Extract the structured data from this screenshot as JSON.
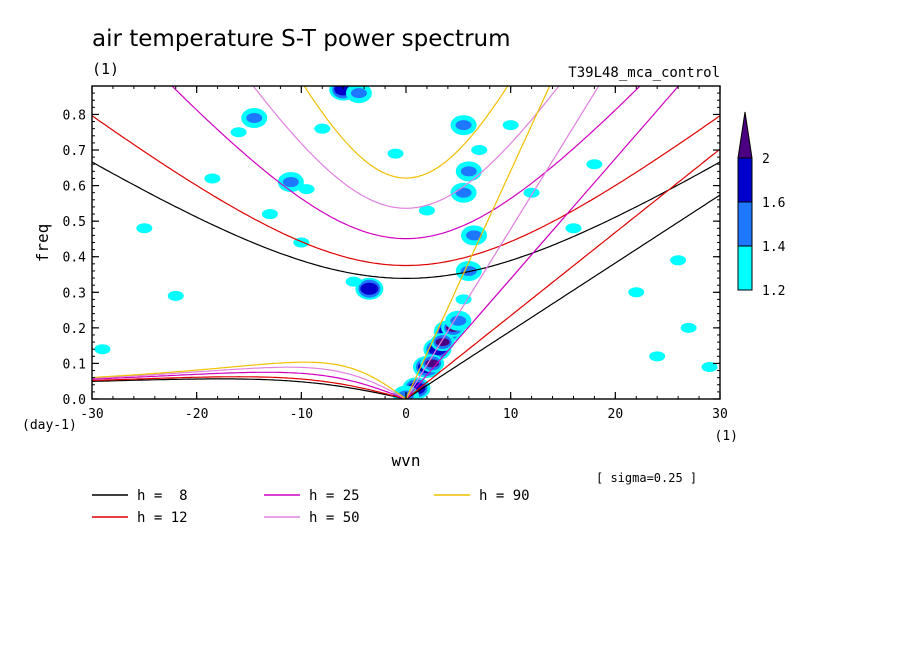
{
  "chart_data": {
    "type": "heatmap",
    "title": "air temperature S-T power spectrum",
    "units_left": "(1)",
    "run_name": "T39L48_mca_control",
    "xlabel": "wvn",
    "ylabel": "freq",
    "x_units": "(1)",
    "y_units": "(day-1)",
    "xlim": [
      -30,
      30
    ],
    "ylim": [
      0,
      0.88
    ],
    "xticks": [
      -30,
      -20,
      -10,
      0,
      10,
      20,
      30
    ],
    "xtick_labels": [
      "-30",
      "-20",
      "-10",
      "0",
      "10",
      "20",
      "30"
    ],
    "yticks": [
      0.0,
      0.1,
      0.2,
      0.3,
      0.4,
      0.5,
      0.6,
      0.7,
      0.8
    ],
    "ytick_labels": [
      "0.0",
      "0.1",
      "0.2",
      "0.3",
      "0.4",
      "0.5",
      "0.6",
      "0.7",
      "0.8"
    ],
    "sigma_note": "[ sigma=0.25 ]",
    "colorbar": {
      "levels": [
        1.2,
        1.4,
        1.6,
        2
      ],
      "labels": [
        "1.2",
        "1.4",
        "1.6",
        "2"
      ],
      "colors": [
        "#00ffff",
        "#1e78ff",
        "#0000cd",
        "#4b0082"
      ]
    },
    "dispersion_curves": [
      {
        "h": 8,
        "label": "h =  8",
        "color": "#000000"
      },
      {
        "h": 12,
        "label": "h = 12",
        "color": "#e00000"
      },
      {
        "h": 25,
        "label": "h = 25",
        "color": "#d000c0"
      },
      {
        "h": 50,
        "label": "h = 50",
        "color": "#e080e0"
      },
      {
        "h": 90,
        "label": "h = 90",
        "color": "#f0c000"
      }
    ],
    "contour_regions": [
      {
        "x": 1,
        "y": 0.03,
        "level": 1.6
      },
      {
        "x": 2,
        "y": 0.09,
        "level": 1.6
      },
      {
        "x": 3,
        "y": 0.14,
        "level": 1.6
      },
      {
        "x": 4,
        "y": 0.19,
        "level": 1.6
      },
      {
        "x": 4.5,
        "y": 0.2,
        "level": 2
      },
      {
        "x": 3.5,
        "y": 0.16,
        "level": 2
      },
      {
        "x": 2.5,
        "y": 0.1,
        "level": 2
      },
      {
        "x": 5,
        "y": 0.22,
        "level": 1.4
      },
      {
        "x": 5.5,
        "y": 0.28,
        "level": 1.2
      },
      {
        "x": 6,
        "y": 0.36,
        "level": 1.4
      },
      {
        "x": 6.5,
        "y": 0.46,
        "level": 1.4
      },
      {
        "x": 5.5,
        "y": 0.58,
        "level": 1.4
      },
      {
        "x": 6,
        "y": 0.64,
        "level": 1.4
      },
      {
        "x": 5.5,
        "y": 0.77,
        "level": 1.4
      },
      {
        "x": 7,
        "y": 0.7,
        "level": 1.2
      },
      {
        "x": -3.5,
        "y": 0.31,
        "level": 1.6
      },
      {
        "x": -5,
        "y": 0.33,
        "level": 1.2
      },
      {
        "x": -6,
        "y": 0.87,
        "level": 1.6
      },
      {
        "x": -4.5,
        "y": 0.86,
        "level": 1.4
      },
      {
        "x": -11,
        "y": 0.61,
        "level": 1.4
      },
      {
        "x": -9.5,
        "y": 0.59,
        "level": 1.2
      },
      {
        "x": -13,
        "y": 0.52,
        "level": 1.2
      },
      {
        "x": -10,
        "y": 0.44,
        "level": 1.2
      },
      {
        "x": -14.5,
        "y": 0.79,
        "level": 1.4
      },
      {
        "x": -16,
        "y": 0.75,
        "level": 1.2
      },
      {
        "x": -18.5,
        "y": 0.62,
        "level": 1.2
      },
      {
        "x": -8,
        "y": 0.76,
        "level": 1.2
      },
      {
        "x": -22,
        "y": 0.29,
        "level": 1.2
      },
      {
        "x": -25,
        "y": 0.48,
        "level": 1.2
      },
      {
        "x": -29,
        "y": 0.14,
        "level": 1.2
      },
      {
        "x": 0,
        "y": 0.01,
        "level": 1.4
      },
      {
        "x": 12,
        "y": 0.58,
        "level": 1.2
      },
      {
        "x": 16,
        "y": 0.48,
        "level": 1.2
      },
      {
        "x": 22,
        "y": 0.3,
        "level": 1.2
      },
      {
        "x": 24,
        "y": 0.12,
        "level": 1.2
      },
      {
        "x": 29,
        "y": 0.09,
        "level": 1.2
      },
      {
        "x": 26,
        "y": 0.39,
        "level": 1.2
      },
      {
        "x": 18,
        "y": 0.66,
        "level": 1.2
      },
      {
        "x": 10,
        "y": 0.77,
        "level": 1.2
      },
      {
        "x": 2,
        "y": 0.53,
        "level": 1.2
      },
      {
        "x": -1,
        "y": 0.69,
        "level": 1.2
      },
      {
        "x": 27,
        "y": 0.2,
        "level": 1.2
      }
    ]
  }
}
